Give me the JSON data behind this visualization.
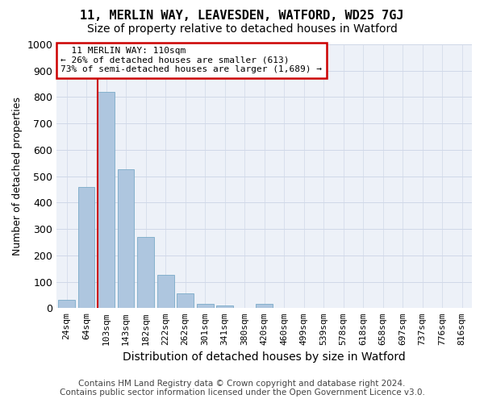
{
  "title": "11, MERLIN WAY, LEAVESDEN, WATFORD, WD25 7GJ",
  "subtitle": "Size of property relative to detached houses in Watford",
  "xlabel": "Distribution of detached houses by size in Watford",
  "ylabel": "Number of detached properties",
  "footer_line1": "Contains HM Land Registry data © Crown copyright and database right 2024.",
  "footer_line2": "Contains public sector information licensed under the Open Government Licence v3.0.",
  "annotation_line1": "  11 MERLIN WAY: 110sqm",
  "annotation_line2": "← 26% of detached houses are smaller (613)",
  "annotation_line3": "73% of semi-detached houses are larger (1,689) →",
  "bar_labels": [
    "24sqm",
    "64sqm",
    "103sqm",
    "143sqm",
    "182sqm",
    "222sqm",
    "262sqm",
    "301sqm",
    "341sqm",
    "380sqm",
    "420sqm",
    "460sqm",
    "499sqm",
    "539sqm",
    "578sqm",
    "618sqm",
    "658sqm",
    "697sqm",
    "737sqm",
    "776sqm",
    "816sqm"
  ],
  "bar_values": [
    30,
    460,
    820,
    525,
    270,
    125,
    55,
    15,
    10,
    0,
    15,
    0,
    0,
    0,
    0,
    0,
    0,
    0,
    0,
    0,
    0
  ],
  "bar_color": "#aec6df",
  "bar_edge_color": "#7aaac8",
  "vline_color": "#cc0000",
  "vline_x_index": 2,
  "annotation_box_color": "#cc0000",
  "ylim": [
    0,
    1000
  ],
  "yticks": [
    0,
    100,
    200,
    300,
    400,
    500,
    600,
    700,
    800,
    900,
    1000
  ],
  "grid_color": "#d0d8e8",
  "background_color": "#edf1f8",
  "title_fontsize": 11,
  "subtitle_fontsize": 10,
  "xlabel_fontsize": 10,
  "ylabel_fontsize": 9,
  "tick_fontsize": 8,
  "footer_fontsize": 7.5
}
